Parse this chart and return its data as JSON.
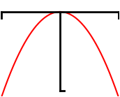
{
  "bg_color": "#ffffff",
  "parabola_color": "#ff0000",
  "axis_color": "#000000",
  "parabola_lw": 1.5,
  "x_range": [
    -5.0,
    5.0
  ],
  "y_range": [
    -4.5,
    0.6
  ],
  "a": -0.18,
  "axis_lw": 2.0,
  "x_tick_drop": 0.35,
  "y_bottom_tick": 0.35,
  "y_axis_bottom": -4.2
}
